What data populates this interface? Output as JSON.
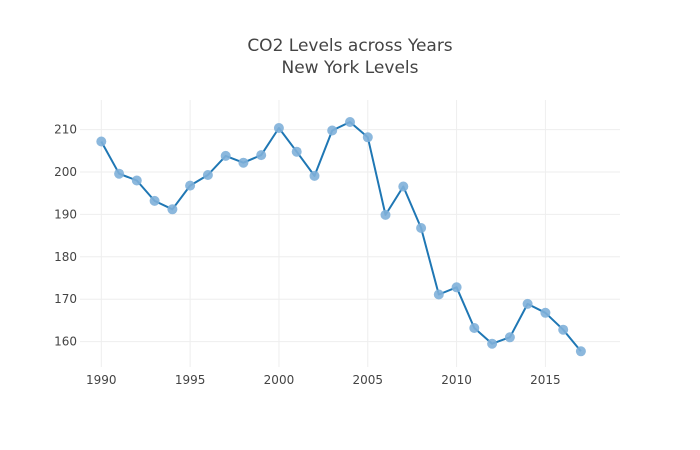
{
  "chart_data": {
    "type": "line",
    "title": "CO2 Levels across Years",
    "subtitle": "New York Levels",
    "xlabel": "",
    "ylabel": "",
    "xlim": [
      1988.8,
      2019.2
    ],
    "ylim": [
      154,
      217
    ],
    "x_ticks": [
      1990,
      1995,
      2000,
      2005,
      2010,
      2015
    ],
    "y_ticks": [
      160,
      170,
      180,
      190,
      200,
      210
    ],
    "grid": true,
    "legend": "none",
    "colors": {
      "line": "#1f77b4",
      "marker": "#7fb0d9"
    },
    "series": [
      {
        "x": [
          1990,
          1991,
          1992,
          1993,
          1994,
          1995,
          1996,
          1997,
          1998,
          1999,
          2000,
          2001,
          2002,
          2003,
          2004,
          2005,
          2006,
          2007,
          2008,
          2009,
          2010,
          2011,
          2012,
          2013,
          2014,
          2015,
          2016,
          2017
        ],
        "y": [
          207.2,
          199.6,
          198.0,
          193.2,
          191.2,
          196.8,
          199.3,
          203.8,
          202.2,
          204.0,
          210.4,
          204.8,
          199.1,
          209.8,
          211.8,
          208.2,
          189.9,
          196.6,
          186.8,
          171.1,
          172.8,
          163.2,
          159.5,
          161.0,
          168.9,
          166.8,
          162.8,
          157.7
        ]
      }
    ]
  }
}
